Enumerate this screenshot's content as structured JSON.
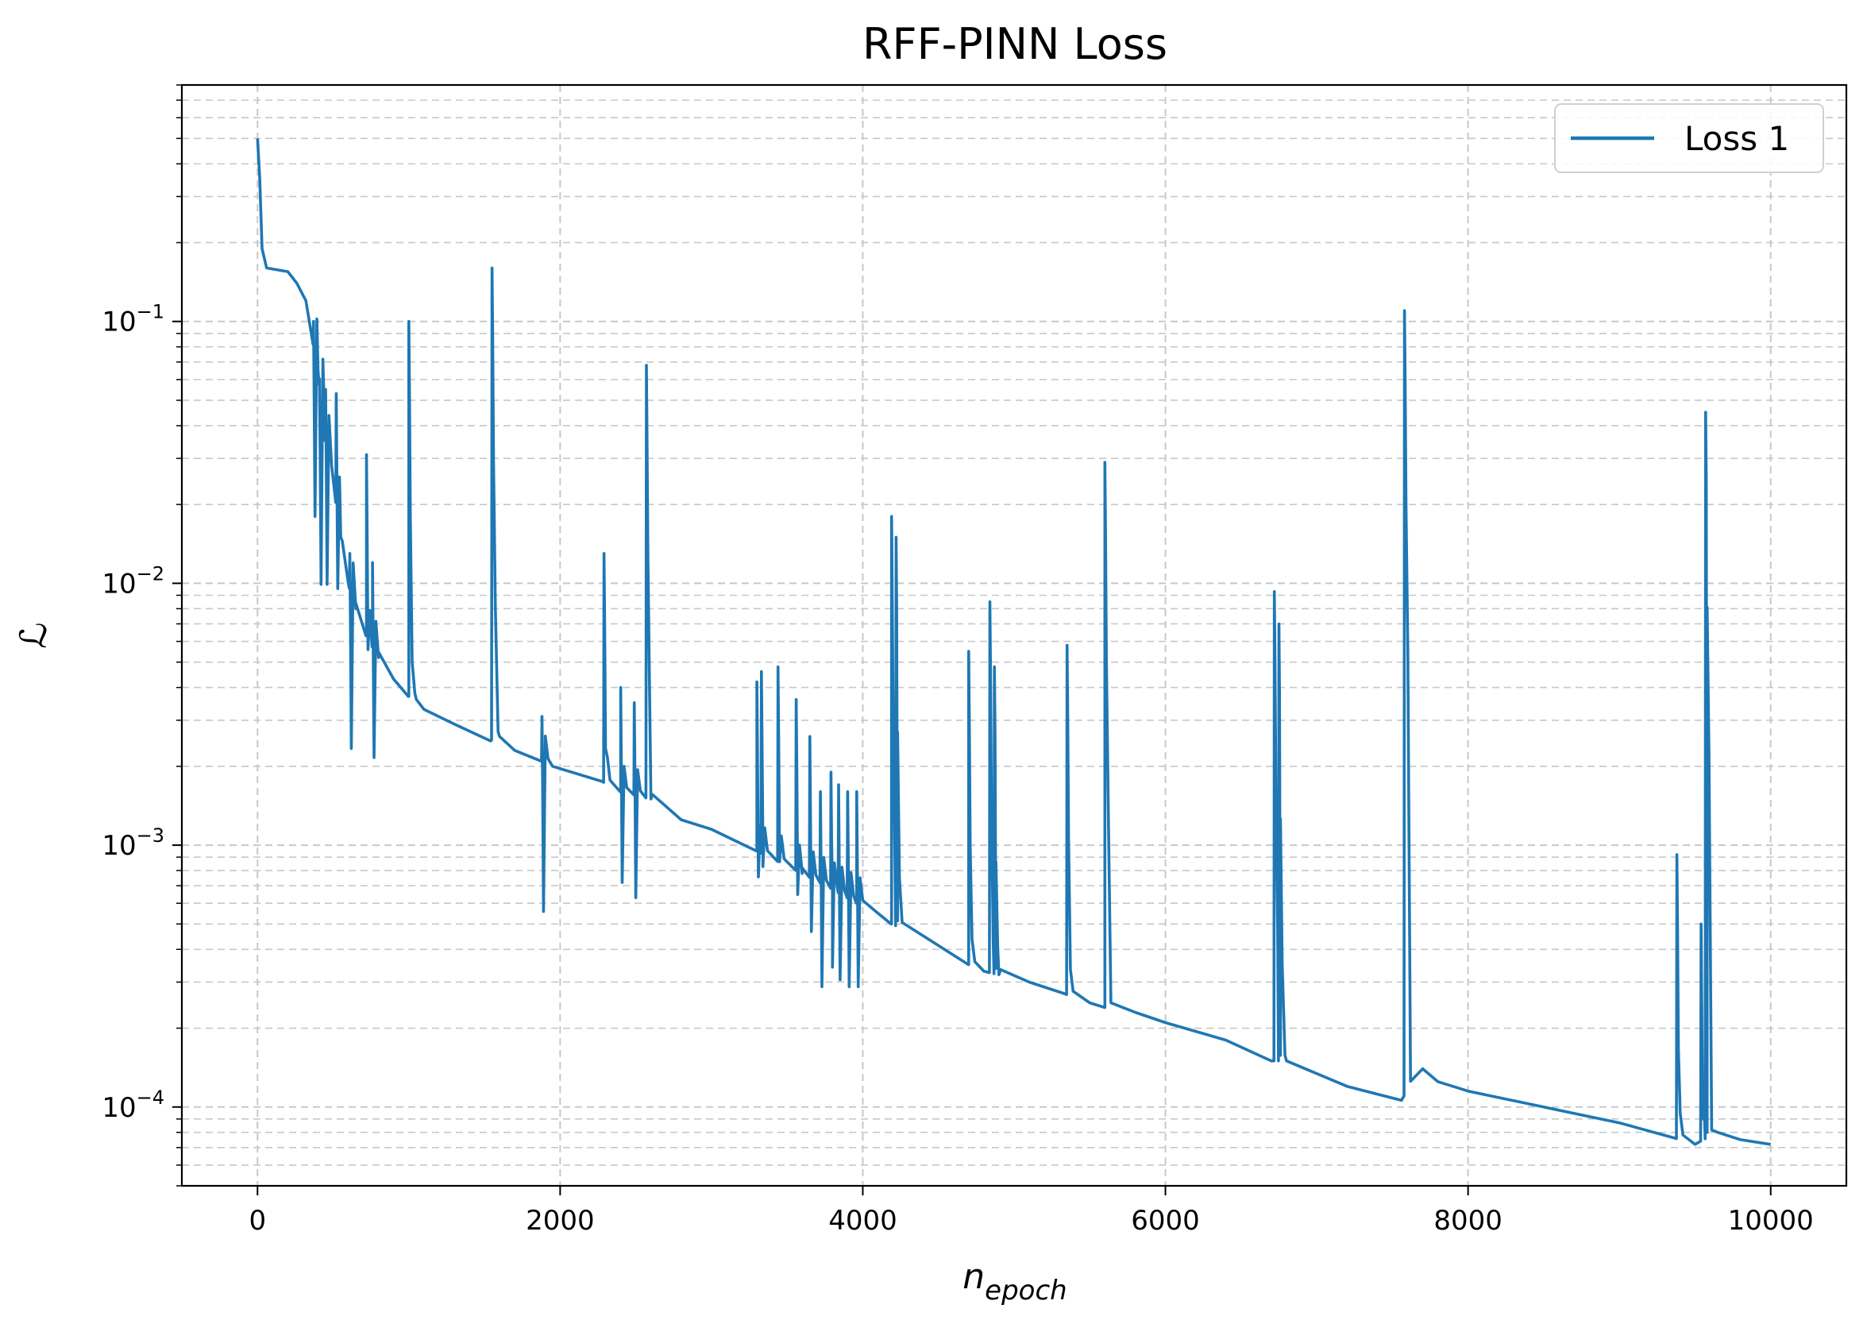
{
  "chart_data": {
    "type": "line",
    "title": "RFF-PINN Loss",
    "xlabel": {
      "base": "n",
      "subscript": "epoch"
    },
    "ylabel": "ℒ",
    "xlim": [
      -500,
      10500
    ],
    "ylim": [
      5e-05,
      0.8
    ],
    "yscale": "log",
    "x_ticks": [
      0,
      2000,
      4000,
      6000,
      8000,
      10000
    ],
    "x_tick_labels": [
      "0",
      "2000",
      "4000",
      "6000",
      "8000",
      "10000"
    ],
    "y_ticks": [
      {
        "value": 0.1,
        "base": "10",
        "exp": "−1"
      },
      {
        "value": 0.01,
        "base": "10",
        "exp": "−2"
      },
      {
        "value": 0.001,
        "base": "10",
        "exp": "−3"
      },
      {
        "value": 0.0001,
        "base": "10",
        "exp": "−4"
      }
    ],
    "grid": true,
    "legend": {
      "position": "top-right"
    },
    "colors": {
      "series": "#1f77b4",
      "grid": "#c8c8c8"
    },
    "series": [
      {
        "name": "Loss 1",
        "baseline": [
          [
            0,
            0.5
          ],
          [
            15,
            0.35
          ],
          [
            30,
            0.19
          ],
          [
            60,
            0.16
          ],
          [
            200,
            0.155
          ],
          [
            260,
            0.14
          ],
          [
            320,
            0.12
          ],
          [
            400,
            0.065
          ],
          [
            450,
            0.035
          ],
          [
            500,
            0.025
          ],
          [
            550,
            0.015
          ],
          [
            600,
            0.01
          ],
          [
            650,
            0.008
          ],
          [
            720,
            0.0063
          ],
          [
            800,
            0.0052
          ],
          [
            900,
            0.0043
          ],
          [
            1000,
            0.0037
          ],
          [
            1050,
            0.0036
          ],
          [
            1100,
            0.0033
          ],
          [
            1300,
            0.0029
          ],
          [
            1540,
            0.0025
          ],
          [
            1600,
            0.0026
          ],
          [
            1700,
            0.0023
          ],
          [
            1870,
            0.0021
          ],
          [
            1950,
            0.002
          ],
          [
            2280,
            0.00175
          ],
          [
            2400,
            0.0016
          ],
          [
            2600,
            0.0015
          ],
          [
            2800,
            0.00125
          ],
          [
            3000,
            0.00115
          ],
          [
            3300,
            0.00095
          ],
          [
            3600,
            0.00078
          ],
          [
            3800,
            0.00068
          ],
          [
            3960,
            0.0006
          ],
          [
            4100,
            0.00055
          ],
          [
            4190,
            0.0005
          ],
          [
            4400,
            0.00045
          ],
          [
            4600,
            0.00038
          ],
          [
            4700,
            0.00035
          ],
          [
            4800,
            0.00033
          ],
          [
            4900,
            0.00032
          ],
          [
            5100,
            0.0003
          ],
          [
            5340,
            0.00027
          ],
          [
            5500,
            0.00025
          ],
          [
            5600,
            0.00024
          ],
          [
            5800,
            0.00023
          ],
          [
            6000,
            0.00021
          ],
          [
            6400,
            0.00018
          ],
          [
            6700,
            0.00015
          ],
          [
            6800,
            0.00015
          ],
          [
            7200,
            0.00012
          ],
          [
            7560,
            0.000106
          ],
          [
            7700,
            0.00014
          ],
          [
            7800,
            0.000125
          ],
          [
            8000,
            0.000115
          ],
          [
            8500,
            0.0001
          ],
          [
            9000,
            8.7e-05
          ],
          [
            9370,
            7.6e-05
          ],
          [
            9500,
            7.2e-05
          ],
          [
            9650,
            8e-05
          ],
          [
            9800,
            7.5e-05
          ],
          [
            10000,
            7.2e-05
          ]
        ],
        "spikes": [
          {
            "x": 370,
            "peak": 0.1
          },
          {
            "x": 410,
            "peak": 0.055
          },
          {
            "x": 450,
            "peak": 0.055
          },
          {
            "x": 520,
            "peak": 0.053
          },
          {
            "x": 610,
            "peak": 0.013
          },
          {
            "x": 720,
            "peak": 0.031
          },
          {
            "x": 760,
            "peak": 0.012
          },
          {
            "x": 1000,
            "peak": 0.1
          },
          {
            "x": 1550,
            "peak": 0.16
          },
          {
            "x": 1880,
            "peak": 0.0031
          },
          {
            "x": 2290,
            "peak": 0.013
          },
          {
            "x": 2400,
            "peak": 0.004
          },
          {
            "x": 2490,
            "peak": 0.0035
          },
          {
            "x": 2570,
            "peak": 0.068
          },
          {
            "x": 3300,
            "peak": 0.0042
          },
          {
            "x": 3330,
            "peak": 0.0046
          },
          {
            "x": 3440,
            "peak": 0.0048
          },
          {
            "x": 3560,
            "peak": 0.0036
          },
          {
            "x": 3650,
            "peak": 0.0026
          },
          {
            "x": 3720,
            "peak": 0.0016
          },
          {
            "x": 3790,
            "peak": 0.0019
          },
          {
            "x": 3840,
            "peak": 0.0017
          },
          {
            "x": 3900,
            "peak": 0.0016
          },
          {
            "x": 3960,
            "peak": 0.0016
          },
          {
            "x": 4190,
            "peak": 0.018
          },
          {
            "x": 4220,
            "peak": 0.015
          },
          {
            "x": 4700,
            "peak": 0.0055
          },
          {
            "x": 4840,
            "peak": 0.0085
          },
          {
            "x": 4870,
            "peak": 0.0048
          },
          {
            "x": 5350,
            "peak": 0.0058
          },
          {
            "x": 5600,
            "peak": 0.029
          },
          {
            "x": 6720,
            "peak": 0.0093
          },
          {
            "x": 6750,
            "peak": 0.007
          },
          {
            "x": 7580,
            "peak": 0.11
          },
          {
            "x": 9380,
            "peak": 0.00092
          },
          {
            "x": 9540,
            "peak": 0.0005
          },
          {
            "x": 9570,
            "peak": 0.045
          }
        ]
      }
    ]
  }
}
